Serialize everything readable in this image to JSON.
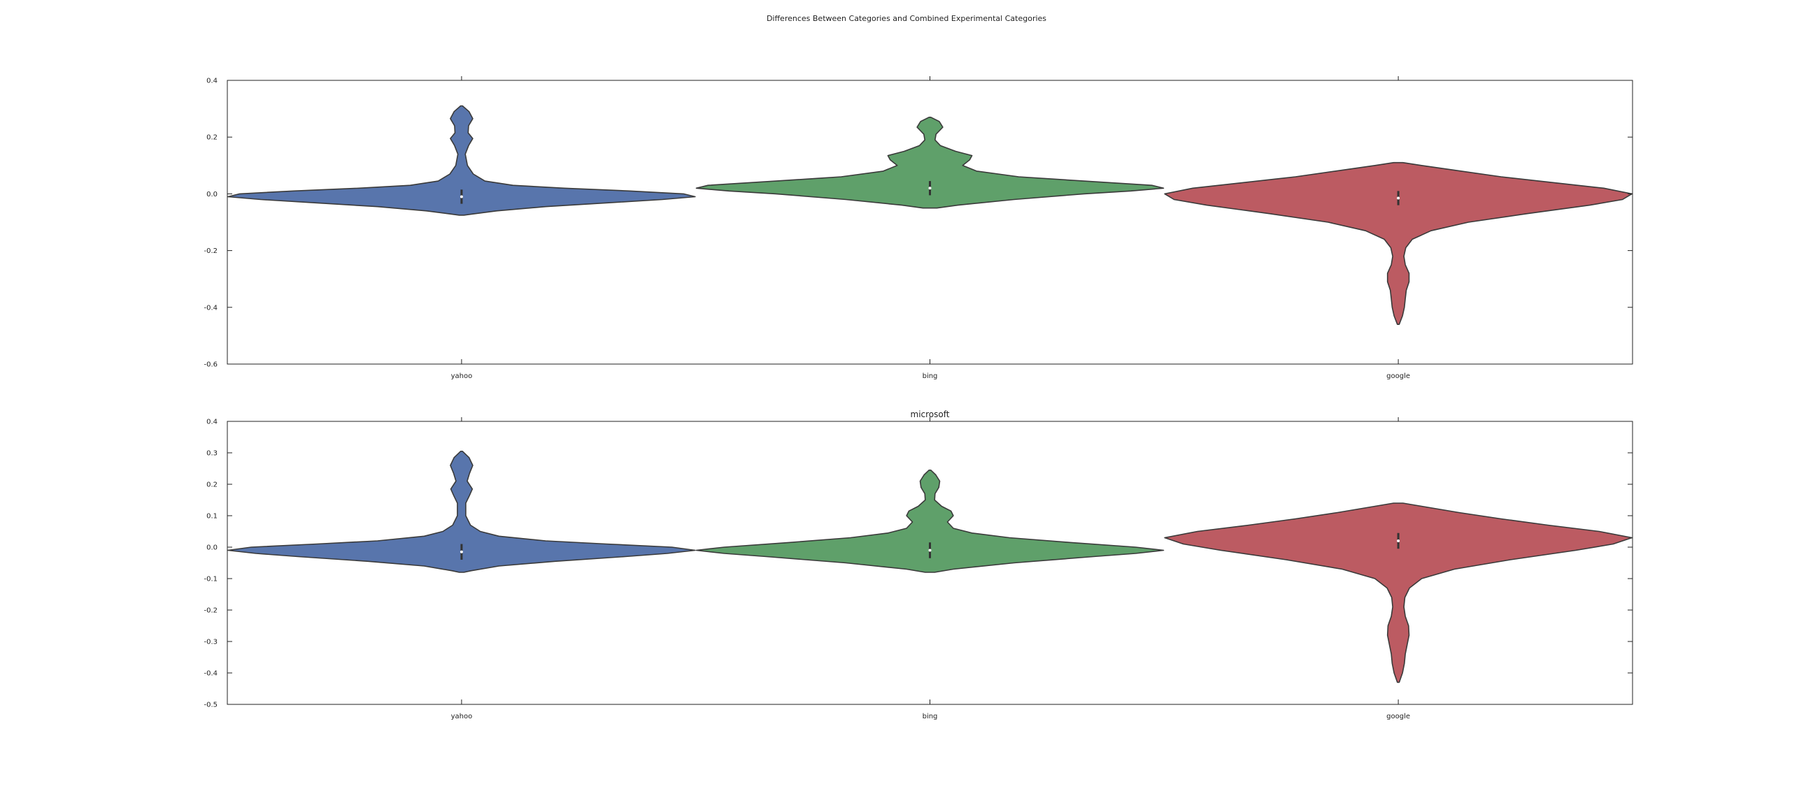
{
  "figure_title": "Differences Between Categories and Combined Experimental Categories",
  "colors": {
    "yahoo": "#5875ac",
    "bing": "#5fa06a",
    "google": "#bc5b62",
    "outline": "#3a3a3a",
    "axis": "#222222"
  },
  "chart_data": [
    {
      "type": "violin",
      "title": "",
      "categories": [
        "yahoo",
        "bing",
        "google"
      ],
      "ylim": [
        -0.6,
        0.4
      ],
      "yticks": [
        "0.4",
        "0.2",
        "0.0",
        "-0.2",
        "-0.4",
        "-0.6"
      ],
      "ytick_values": [
        0.4,
        0.2,
        0.0,
        -0.2,
        -0.4,
        -0.6
      ],
      "grid": false,
      "violins": [
        {
          "category": "yahoo",
          "range": [
            -0.075,
            0.31
          ],
          "median": -0.01,
          "profile": [
            [
              -0.075,
              0.01
            ],
            [
              -0.072,
              0.04
            ],
            [
              -0.06,
              0.15
            ],
            [
              -0.045,
              0.36
            ],
            [
              -0.03,
              0.66
            ],
            [
              -0.02,
              0.86
            ],
            [
              -0.01,
              1.0
            ],
            [
              0.0,
              0.95
            ],
            [
              0.01,
              0.72
            ],
            [
              0.02,
              0.44
            ],
            [
              0.03,
              0.22
            ],
            [
              0.045,
              0.1
            ],
            [
              0.07,
              0.05
            ],
            [
              0.1,
              0.025
            ],
            [
              0.14,
              0.016
            ],
            [
              0.17,
              0.03
            ],
            [
              0.195,
              0.048
            ],
            [
              0.215,
              0.028
            ],
            [
              0.24,
              0.03
            ],
            [
              0.265,
              0.048
            ],
            [
              0.29,
              0.032
            ],
            [
              0.31,
              0.004
            ]
          ]
        },
        {
          "category": "bing",
          "range": [
            -0.05,
            0.27
          ],
          "median": 0.02,
          "profile": [
            [
              -0.05,
              0.03
            ],
            [
              -0.04,
              0.12
            ],
            [
              -0.02,
              0.36
            ],
            [
              0.0,
              0.66
            ],
            [
              0.01,
              0.86
            ],
            [
              0.02,
              1.0
            ],
            [
              0.03,
              0.95
            ],
            [
              0.045,
              0.66
            ],
            [
              0.06,
              0.38
            ],
            [
              0.08,
              0.2
            ],
            [
              0.1,
              0.14
            ],
            [
              0.12,
              0.17
            ],
            [
              0.135,
              0.18
            ],
            [
              0.15,
              0.11
            ],
            [
              0.17,
              0.045
            ],
            [
              0.19,
              0.022
            ],
            [
              0.21,
              0.026
            ],
            [
              0.235,
              0.055
            ],
            [
              0.255,
              0.04
            ],
            [
              0.27,
              0.004
            ]
          ]
        },
        {
          "category": "google",
          "range": [
            -0.46,
            0.11
          ],
          "median": -0.015,
          "profile": [
            [
              -0.46,
              0.004
            ],
            [
              -0.43,
              0.018
            ],
            [
              -0.4,
              0.026
            ],
            [
              -0.37,
              0.03
            ],
            [
              -0.34,
              0.034
            ],
            [
              -0.31,
              0.046
            ],
            [
              -0.28,
              0.046
            ],
            [
              -0.25,
              0.03
            ],
            [
              -0.22,
              0.024
            ],
            [
              -0.19,
              0.032
            ],
            [
              -0.16,
              0.06
            ],
            [
              -0.13,
              0.14
            ],
            [
              -0.1,
              0.3
            ],
            [
              -0.07,
              0.55
            ],
            [
              -0.04,
              0.82
            ],
            [
              -0.02,
              0.96
            ],
            [
              0.0,
              1.0
            ],
            [
              0.02,
              0.88
            ],
            [
              0.04,
              0.66
            ],
            [
              0.06,
              0.44
            ],
            [
              0.08,
              0.27
            ],
            [
              0.1,
              0.1
            ],
            [
              0.11,
              0.02
            ]
          ]
        }
      ]
    },
    {
      "type": "violin",
      "title": "microsoft",
      "categories": [
        "yahoo",
        "bing",
        "google"
      ],
      "ylim": [
        -0.5,
        0.4
      ],
      "yticks": [
        "0.4",
        "0.3",
        "0.2",
        "0.1",
        "0.0",
        "-0.1",
        "-0.2",
        "-0.3",
        "-0.4",
        "-0.5"
      ],
      "ytick_values": [
        0.4,
        0.3,
        0.2,
        0.1,
        0.0,
        -0.1,
        -0.2,
        -0.3,
        -0.4,
        -0.5
      ],
      "grid": false,
      "violins": [
        {
          "category": "yahoo",
          "range": [
            -0.08,
            0.305
          ],
          "median": -0.015,
          "profile": [
            [
              -0.08,
              0.01
            ],
            [
              -0.075,
              0.04
            ],
            [
              -0.06,
              0.16
            ],
            [
              -0.045,
              0.4
            ],
            [
              -0.03,
              0.7
            ],
            [
              -0.02,
              0.88
            ],
            [
              -0.01,
              1.0
            ],
            [
              0.0,
              0.9
            ],
            [
              0.01,
              0.62
            ],
            [
              0.02,
              0.36
            ],
            [
              0.035,
              0.16
            ],
            [
              0.05,
              0.08
            ],
            [
              0.07,
              0.038
            ],
            [
              0.1,
              0.018
            ],
            [
              0.14,
              0.018
            ],
            [
              0.165,
              0.034
            ],
            [
              0.185,
              0.046
            ],
            [
              0.21,
              0.024
            ],
            [
              0.235,
              0.034
            ],
            [
              0.26,
              0.048
            ],
            [
              0.285,
              0.032
            ],
            [
              0.305,
              0.004
            ]
          ]
        },
        {
          "category": "bing",
          "range": [
            -0.08,
            0.245
          ],
          "median": -0.01,
          "profile": [
            [
              -0.08,
              0.02
            ],
            [
              -0.07,
              0.1
            ],
            [
              -0.05,
              0.36
            ],
            [
              -0.03,
              0.7
            ],
            [
              -0.02,
              0.88
            ],
            [
              -0.01,
              1.0
            ],
            [
              0.0,
              0.88
            ],
            [
              0.015,
              0.6
            ],
            [
              0.03,
              0.34
            ],
            [
              0.045,
              0.18
            ],
            [
              0.06,
              0.1
            ],
            [
              0.08,
              0.075
            ],
            [
              0.1,
              0.1
            ],
            [
              0.115,
              0.09
            ],
            [
              0.13,
              0.05
            ],
            [
              0.15,
              0.02
            ],
            [
              0.17,
              0.022
            ],
            [
              0.19,
              0.038
            ],
            [
              0.21,
              0.042
            ],
            [
              0.23,
              0.025
            ],
            [
              0.245,
              0.004
            ]
          ]
        },
        {
          "category": "google",
          "range": [
            -0.43,
            0.14
          ],
          "median": 0.02,
          "profile": [
            [
              -0.43,
              0.004
            ],
            [
              -0.4,
              0.018
            ],
            [
              -0.37,
              0.026
            ],
            [
              -0.34,
              0.03
            ],
            [
              -0.31,
              0.038
            ],
            [
              -0.28,
              0.046
            ],
            [
              -0.25,
              0.044
            ],
            [
              -0.22,
              0.03
            ],
            [
              -0.19,
              0.024
            ],
            [
              -0.16,
              0.028
            ],
            [
              -0.13,
              0.048
            ],
            [
              -0.1,
              0.1
            ],
            [
              -0.07,
              0.24
            ],
            [
              -0.04,
              0.48
            ],
            [
              -0.01,
              0.76
            ],
            [
              0.01,
              0.92
            ],
            [
              0.03,
              1.0
            ],
            [
              0.05,
              0.86
            ],
            [
              0.07,
              0.64
            ],
            [
              0.09,
              0.44
            ],
            [
              0.11,
              0.26
            ],
            [
              0.13,
              0.1
            ],
            [
              0.14,
              0.02
            ]
          ]
        }
      ]
    }
  ]
}
